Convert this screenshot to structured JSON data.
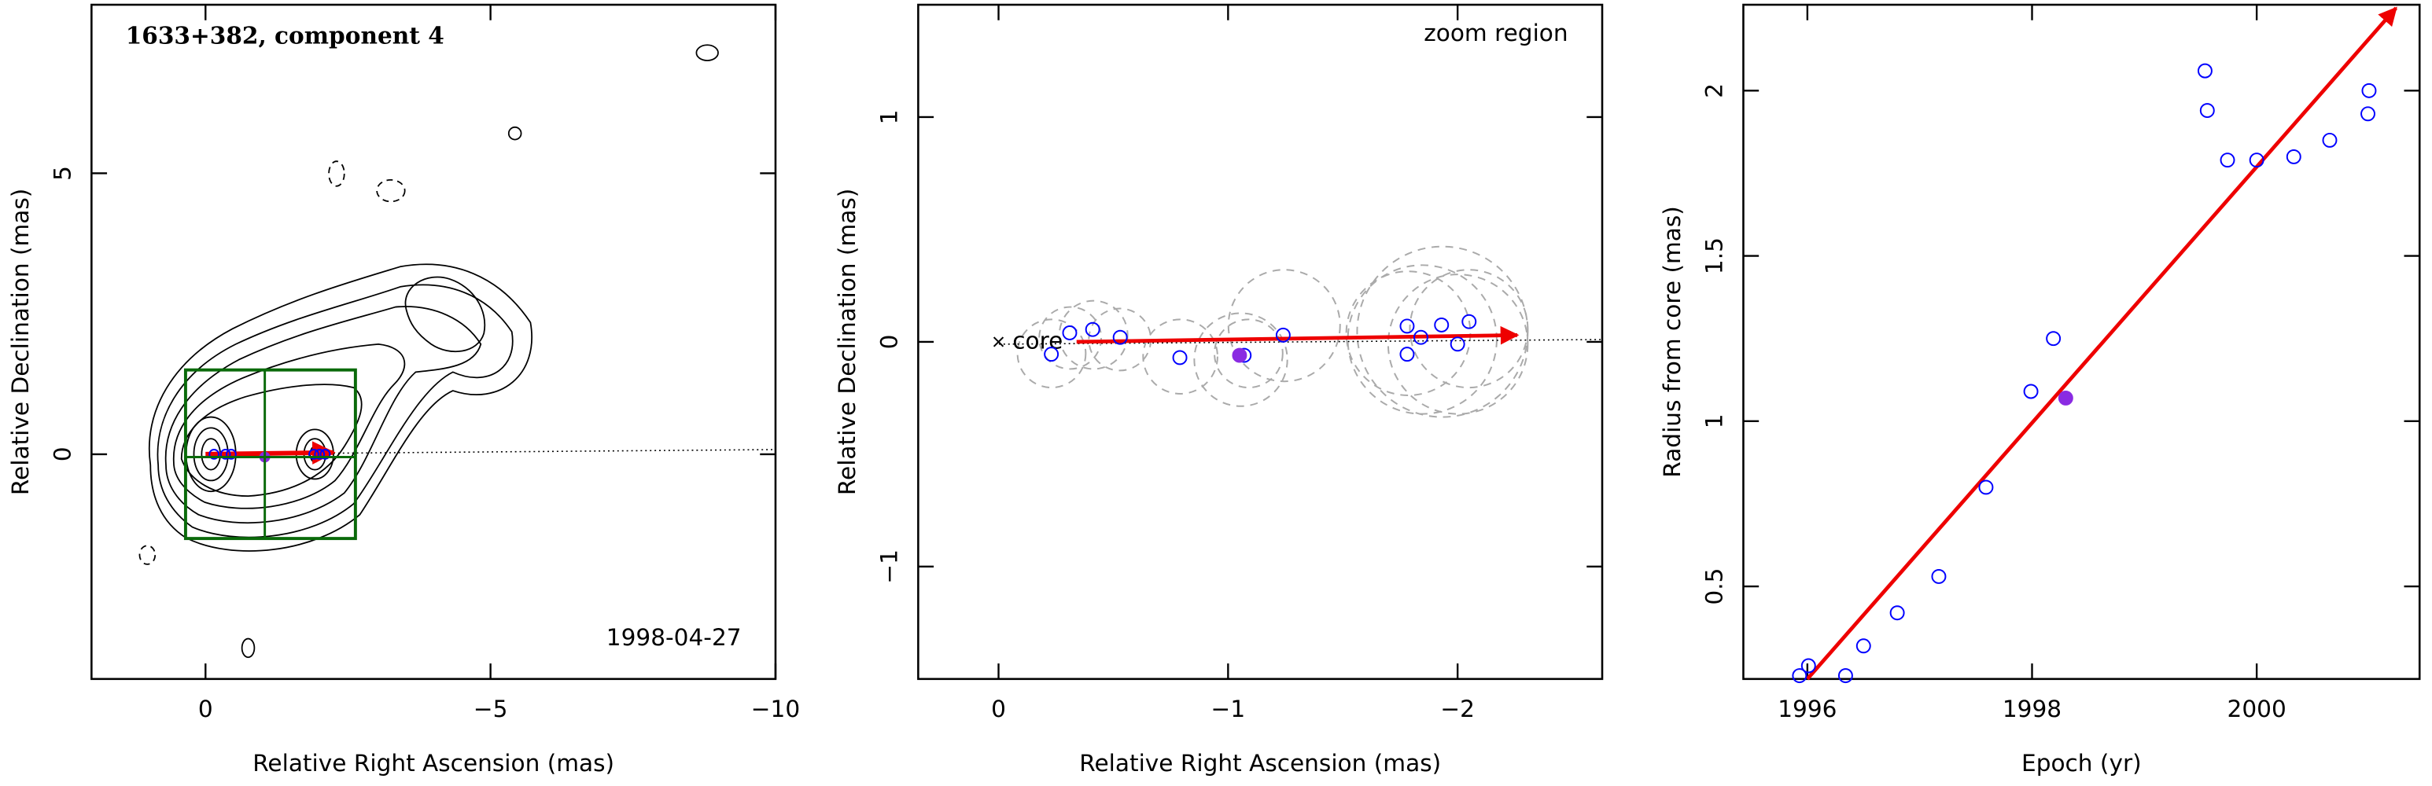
{
  "chart_data": [
    {
      "type": "scatter",
      "title": "1633+382, component 4",
      "annotation": "1998-04-27",
      "x_label": "Relative Right Ascension (mas)",
      "y_label": "Relative Declination (mas)",
      "xlim": [
        2,
        -10
      ],
      "ylim": [
        -4,
        8
      ],
      "xticks": [
        0,
        {
          "value": -5,
          "label": "−5"
        },
        {
          "value": -10,
          "label": "−10"
        }
      ],
      "yticks": [
        0,
        5
      ],
      "series": [
        {
          "color": "#0000ff",
          "filled": false,
          "x": [
            -0.15,
            -0.35,
            -0.45,
            -1.9,
            -2.0,
            -2.1
          ],
          "values": [
            0,
            0,
            0,
            0,
            0,
            0
          ]
        },
        {
          "color": "#8a2be2",
          "filled": true,
          "x": [
            -1.04
          ],
          "values": [
            -0.05
          ]
        }
      ],
      "arrow": {
        "color": "#ee0000",
        "x": [
          0,
          -2.24
        ],
        "y": [
          0,
          0.03
        ]
      }
    },
    {
      "type": "scatter",
      "annotation": "zoom region",
      "x_label": "Relative Right Ascension (mas)",
      "y_label": "Relative Declination (mas)",
      "xlim": [
        0.35,
        -2.63
      ],
      "ylim": [
        -1.5,
        1.5
      ],
      "xticks": [
        0,
        {
          "value": -1,
          "label": "−1"
        },
        {
          "value": -2,
          "label": "−2"
        }
      ],
      "yticks": [
        {
          "value": -1,
          "label": "−1"
        },
        0,
        1
      ],
      "core": {
        "x": 0,
        "y": 0,
        "label": "core"
      },
      "series": [
        {
          "color": "#0000ff",
          "filled": false,
          "x": [
            -0.23,
            -0.31,
            -0.41,
            -0.53,
            -0.79,
            -1.07,
            -1.24,
            -1.78,
            -1.78,
            -1.84,
            -1.93,
            -2.0,
            -2.05
          ],
          "values": [
            -0.055,
            0.04,
            0.055,
            0.02,
            -0.07,
            -0.06,
            0.03,
            0.07,
            -0.055,
            0.02,
            0.075,
            -0.01,
            0.09
          ]
        },
        {
          "color": "#8a2be2",
          "filled": true,
          "x": [
            -1.05
          ],
          "values": [
            -0.06
          ]
        }
      ],
      "arrow": {
        "color": "#ee0000",
        "x": [
          -0.34,
          -2.26
        ],
        "y": [
          0,
          0.03
        ]
      }
    },
    {
      "type": "scatter",
      "x_label": "Epoch (yr)",
      "y_label": "Radius from core (mas)",
      "xlim": [
        1995.43,
        2001.45
      ],
      "ylim": [
        0.22,
        2.26
      ],
      "xticks": [
        1996,
        1998,
        2000
      ],
      "yticks": [
        0.5,
        1,
        1.5,
        2
      ],
      "series": [
        {
          "color": "#0000ff",
          "filled": false,
          "x": [
            1995.93,
            1996.01,
            1996.34,
            1996.5,
            1996.8,
            1997.17,
            1997.59,
            1997.99,
            1998.19,
            1999.54,
            1999.56,
            1999.74,
            2000.0,
            2000.33,
            2000.65,
            2000.99,
            2001.0
          ],
          "values": [
            0.23,
            0.26,
            0.23,
            0.32,
            0.42,
            0.53,
            0.8,
            1.09,
            1.25,
            2.06,
            1.94,
            1.79,
            1.79,
            1.8,
            1.85,
            1.93,
            2.0
          ]
        },
        {
          "color": "#8a2be2",
          "filled": true,
          "x": [
            1998.3
          ],
          "values": [
            1.07
          ]
        }
      ],
      "arrow": {
        "color": "#ee0000",
        "x": [
          1996.0,
          2001.24
        ],
        "y": [
          0.22,
          2.25
        ]
      }
    }
  ]
}
